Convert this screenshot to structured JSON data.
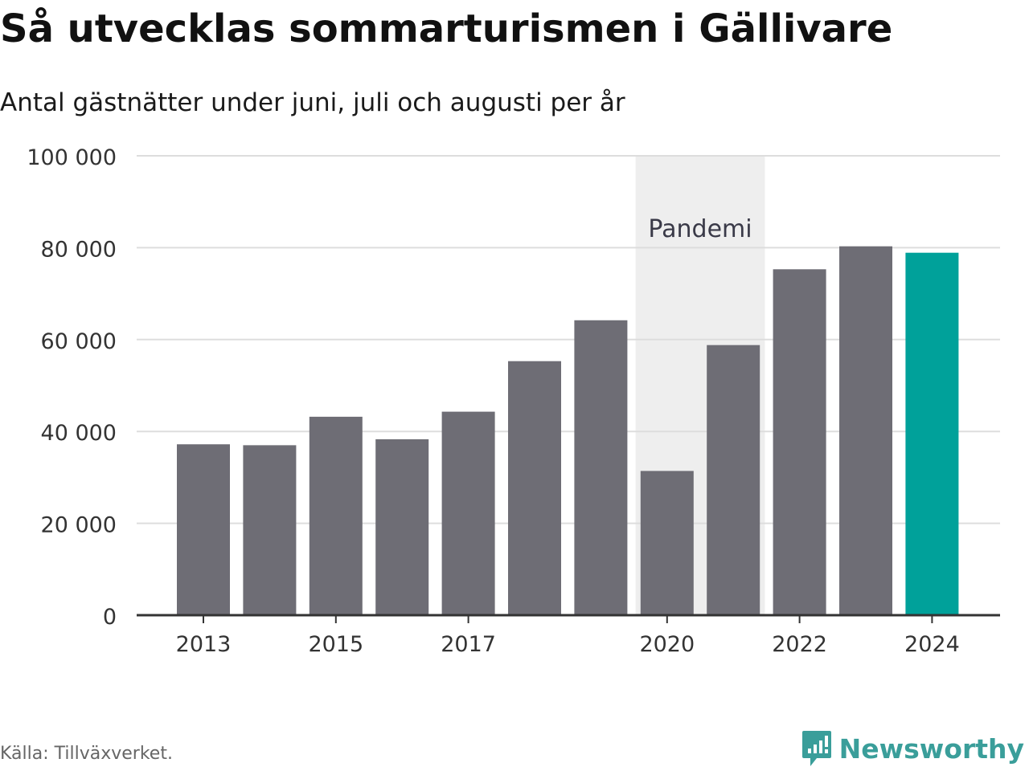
{
  "header": {
    "title": "Så utvecklas sommarturismen i Gällivare",
    "subtitle": "Antal gästnätter under juni, juli och augusti per år"
  },
  "footer": {
    "source": "Källa: Tillväxverket.",
    "brand": "Newsworthy"
  },
  "colors": {
    "bar": "#6e6d75",
    "highlight": "#00a19a",
    "band": "#eeeeee",
    "grid": "#dddddd",
    "axis": "#333333",
    "brand": "#3a9e9a"
  },
  "chart_data": {
    "type": "bar",
    "title": "Så utvecklas sommarturismen i Gällivare",
    "subtitle": "Antal gästnätter under juni, juli och augusti per år",
    "xlabel": "",
    "ylabel": "",
    "categories": [
      "2013",
      "2014",
      "2015",
      "2016",
      "2017",
      "2018",
      "2019",
      "2020",
      "2021",
      "2022",
      "2023",
      "2024"
    ],
    "values": [
      37200,
      37000,
      43200,
      38300,
      44300,
      55300,
      64200,
      31400,
      58800,
      75300,
      80300,
      78900
    ],
    "highlight_category": "2024",
    "ylim": [
      0,
      100000
    ],
    "yticks": [
      0,
      20000,
      40000,
      60000,
      80000,
      100000
    ],
    "ytick_labels": [
      "0",
      "20 000",
      "40 000",
      "60 000",
      "80 000",
      "100 000"
    ],
    "xtick_labels": [
      "2013",
      "2015",
      "2017",
      "2020",
      "2022",
      "2024"
    ],
    "grid": true,
    "legend": "none",
    "annotations": [
      {
        "type": "band",
        "label": "Pandemi",
        "from": "2020",
        "to": "2021"
      }
    ]
  }
}
